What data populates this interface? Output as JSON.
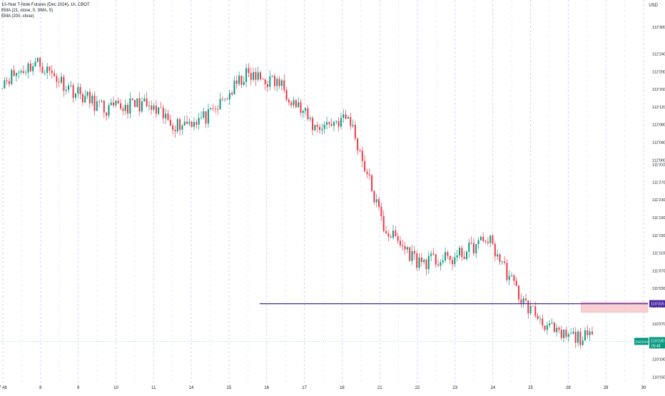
{
  "header": {
    "symbol_line": "10-Year T-Note Futures (Dec 2024), 1h, CBOT",
    "indicator_1": "EMA (21, close, 0, SMA, 5)",
    "indicator_2": "EMA (200, close)"
  },
  "currency": "USD",
  "colors": {
    "up": "#089981",
    "down": "#f23645",
    "level_line": "#4527a0",
    "zone_fill": "#f7c7cc",
    "zone_stroke": "#f0a0a8",
    "grid_dashed": "#b9c3f5",
    "current_price_bg": "#089981"
  },
  "chart_data": {
    "type": "candlestick",
    "title": "10-Year T-Note Futures (Dec 2024), 1h, CBOT",
    "x_tick_labels": [
      "7 Alt",
      "8",
      "9",
      "10",
      "11",
      "14",
      "15",
      "16",
      "17",
      "18",
      "21",
      "22",
      "23",
      "24",
      "25",
      "28",
      "29",
      "30"
    ],
    "y_tick_labels": [
      "112'300",
      "112'240",
      "112'200",
      "112'160",
      "112'120",
      "112'080",
      "112'040",
      "112'000",
      "111'310",
      "111'270",
      "111'230",
      "111'190",
      "111'150",
      "111'110",
      "111'070",
      "111'030",
      "110'310",
      "110'270",
      "110'230",
      "110'190",
      "110'150"
    ],
    "y_tick_values_32nds": [
      112.9375,
      112.75,
      112.625,
      112.5,
      112.375,
      112.25,
      112.125,
      112.0,
      111.96875,
      111.84375,
      111.71875,
      111.59375,
      111.46875,
      111.34375,
      111.21875,
      111.09375,
      110.96875,
      110.84375,
      110.71875,
      110.59375,
      110.46875
    ],
    "ylim": [
      110.43,
      113.13
    ],
    "level_line": {
      "price": 110.986,
      "label": "110'315"
    },
    "supply_zone": {
      "top": 110.998,
      "bottom": 110.925,
      "start_day": "28"
    },
    "current_price": {
      "label": "110'230",
      "symbol": "ZNZ2024",
      "countdown": "00:48",
      "price": 110.72
    },
    "trend_points": [
      [
        "7 Alt",
        112.56
      ],
      [
        "8",
        112.69
      ],
      [
        "9",
        112.5
      ],
      [
        "10",
        112.35
      ],
      [
        "11",
        112.4
      ],
      [
        "14",
        112.25
      ],
      [
        "15",
        112.31
      ],
      [
        "16",
        112.6
      ],
      [
        "17",
        112.54
      ],
      [
        "18",
        112.23
      ],
      [
        "21",
        112.3
      ],
      [
        "22",
        111.52
      ],
      [
        "23",
        111.28
      ],
      [
        "24",
        111.3
      ],
      [
        "25",
        111.45
      ],
      [
        "25b",
        111.0
      ],
      [
        "28",
        110.76
      ],
      [
        "29",
        110.74
      ]
    ]
  }
}
